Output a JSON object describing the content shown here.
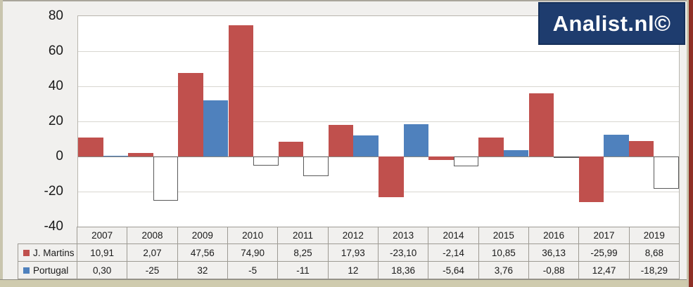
{
  "brand": {
    "logo_text": "Analist.nl©",
    "logo_bg": "#1e3c6e",
    "logo_text_color": "#ffffff"
  },
  "chart_data": {
    "type": "bar",
    "title": "",
    "xlabel": "",
    "ylabel": "",
    "categories": [
      "2007",
      "2008",
      "2009",
      "2010",
      "2011",
      "2012",
      "2013",
      "2014",
      "2015",
      "2016",
      "2017",
      "2019"
    ],
    "series": [
      {
        "name": "J. Martins",
        "color": "#c0504d",
        "values": [
          10.91,
          2.07,
          47.56,
          74.9,
          8.25,
          17.93,
          -23.1,
          -2.14,
          10.85,
          36.13,
          -25.99,
          8.68
        ],
        "labels": [
          "10,91",
          "2,07",
          "47,56",
          "74,90",
          "8,25",
          "17,93",
          "-23,10",
          "-2,14",
          "10,85",
          "36,13",
          "-25,99",
          "8,68"
        ]
      },
      {
        "name": "Portugal",
        "color": "#4f81bd",
        "invert_if_negative": true,
        "negative_fill": "#ffffff",
        "negative_border": "#595959",
        "values": [
          0.3,
          -25,
          32,
          -5,
          -11,
          12,
          18.36,
          -5.64,
          3.76,
          -0.88,
          12.47,
          -18.29
        ],
        "labels": [
          "0,30",
          "-25",
          "32",
          "-5",
          "-11",
          "12",
          "18,36",
          "-5,64",
          "3,76",
          "-0,88",
          "12,47",
          "-18,29"
        ]
      }
    ],
    "ylim": [
      -40,
      80
    ],
    "yticks": [
      80,
      60,
      40,
      20,
      0,
      -20,
      -40
    ],
    "grid": "horizontal",
    "legend_position": "left-of-data-table",
    "plot_bg": "#ffffff",
    "chart_bg": "#f1f0ee",
    "gridline_color": "#d8d6d0",
    "zero_line_color": "#898781"
  }
}
